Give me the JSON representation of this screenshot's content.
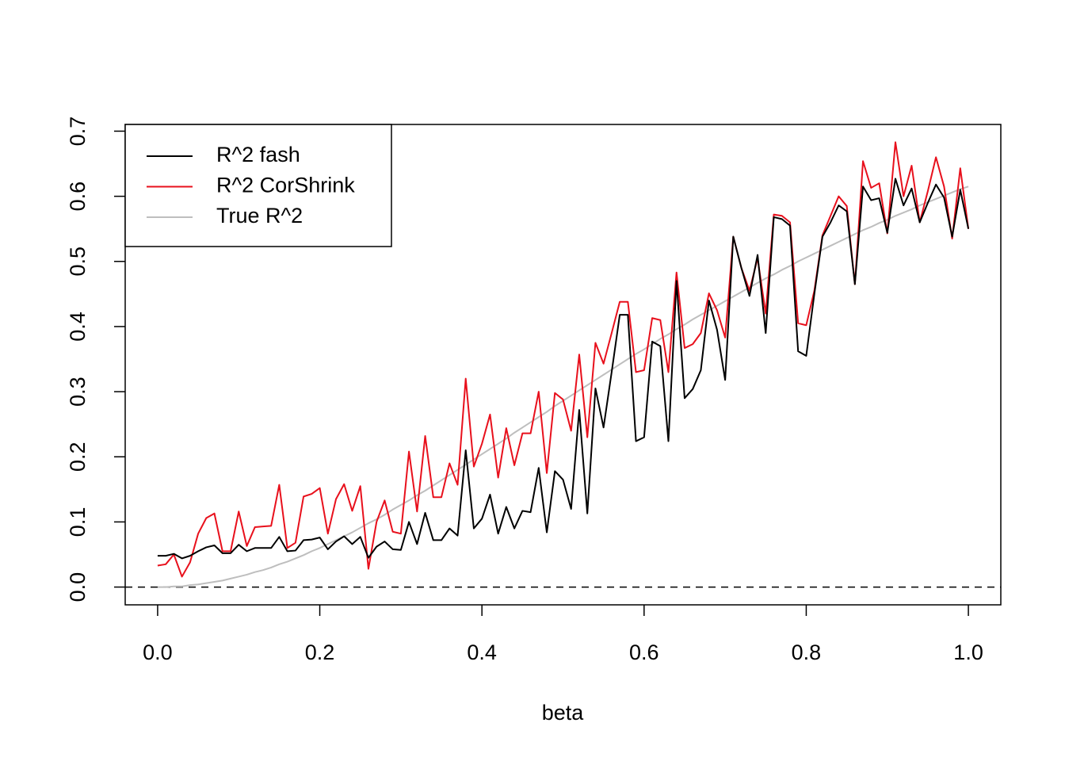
{
  "chart_data": {
    "type": "line",
    "xlabel": "beta",
    "x": [
      0,
      0.01,
      0.02,
      0.03,
      0.04,
      0.05,
      0.06,
      0.07,
      0.08,
      0.09,
      0.1,
      0.11,
      0.12,
      0.13,
      0.14,
      0.15,
      0.16,
      0.17,
      0.18,
      0.19,
      0.2,
      0.21,
      0.22,
      0.23,
      0.24,
      0.25,
      0.26,
      0.27,
      0.28,
      0.29,
      0.3,
      0.31,
      0.32,
      0.33,
      0.34,
      0.35,
      0.36,
      0.37,
      0.38,
      0.39,
      0.4,
      0.41,
      0.42,
      0.43,
      0.44,
      0.45,
      0.46,
      0.47,
      0.48,
      0.49,
      0.5,
      0.51,
      0.52,
      0.53,
      0.54,
      0.55,
      0.56,
      0.57,
      0.58,
      0.59,
      0.6,
      0.61,
      0.62,
      0.63,
      0.64,
      0.65,
      0.66,
      0.67,
      0.68,
      0.69,
      0.7,
      0.71,
      0.72,
      0.73,
      0.74,
      0.75,
      0.76,
      0.77,
      0.78,
      0.79,
      0.8,
      0.81,
      0.82,
      0.83,
      0.84,
      0.85,
      0.86,
      0.87,
      0.88,
      0.89,
      0.9,
      0.91,
      0.92,
      0.93,
      0.94,
      0.95,
      0.96,
      0.97,
      0.98,
      0.99,
      1
    ],
    "series": [
      {
        "name": "R^2 fash",
        "color": "#000000",
        "values": [
          0.048,
          0.048,
          0.051,
          0.044,
          0.048,
          0.055,
          0.061,
          0.064,
          0.052,
          0.052,
          0.065,
          0.055,
          0.06,
          0.06,
          0.06,
          0.077,
          0.055,
          0.056,
          0.072,
          0.073,
          0.076,
          0.058,
          0.07,
          0.078,
          0.066,
          0.077,
          0.045,
          0.062,
          0.07,
          0.058,
          0.057,
          0.1,
          0.066,
          0.114,
          0.072,
          0.072,
          0.09,
          0.079,
          0.21,
          0.09,
          0.105,
          0.142,
          0.082,
          0.123,
          0.09,
          0.117,
          0.115,
          0.183,
          0.084,
          0.178,
          0.165,
          0.12,
          0.272,
          0.113,
          0.305,
          0.245,
          0.33,
          0.418,
          0.418,
          0.224,
          0.23,
          0.377,
          0.37,
          0.224,
          0.47,
          0.29,
          0.304,
          0.333,
          0.44,
          0.395,
          0.318,
          0.538,
          0.49,
          0.447,
          0.51,
          0.39,
          0.568,
          0.565,
          0.555,
          0.362,
          0.355,
          0.45,
          0.538,
          0.56,
          0.586,
          0.577,
          0.465,
          0.615,
          0.594,
          0.597,
          0.544,
          0.627,
          0.586,
          0.612,
          0.56,
          0.59,
          0.618,
          0.598,
          0.538,
          0.61,
          0.55
        ]
      },
      {
        "name": "R^2 CorShrink",
        "color": "#e8101c",
        "values": [
          0.033,
          0.035,
          0.05,
          0.016,
          0.038,
          0.082,
          0.106,
          0.113,
          0.055,
          0.055,
          0.116,
          0.063,
          0.092,
          0.093,
          0.094,
          0.157,
          0.06,
          0.068,
          0.139,
          0.143,
          0.152,
          0.082,
          0.135,
          0.158,
          0.117,
          0.155,
          0.028,
          0.1,
          0.133,
          0.085,
          0.082,
          0.208,
          0.116,
          0.232,
          0.138,
          0.138,
          0.19,
          0.157,
          0.32,
          0.185,
          0.22,
          0.265,
          0.168,
          0.244,
          0.187,
          0.236,
          0.236,
          0.3,
          0.175,
          0.298,
          0.288,
          0.24,
          0.357,
          0.23,
          0.375,
          0.343,
          0.39,
          0.438,
          0.438,
          0.33,
          0.333,
          0.413,
          0.41,
          0.33,
          0.483,
          0.367,
          0.373,
          0.39,
          0.451,
          0.425,
          0.383,
          0.538,
          0.49,
          0.455,
          0.505,
          0.42,
          0.572,
          0.57,
          0.56,
          0.405,
          0.402,
          0.455,
          0.54,
          0.57,
          0.6,
          0.585,
          0.465,
          0.654,
          0.613,
          0.62,
          0.543,
          0.683,
          0.6,
          0.647,
          0.56,
          0.608,
          0.66,
          0.615,
          0.535,
          0.643,
          0.55
        ]
      },
      {
        "name": "True R^2",
        "color": "#bebebe",
        "values": [
          0,
          0,
          0.001,
          0.001,
          0.003,
          0.004,
          0.006,
          0.008,
          0.01,
          0.013,
          0.016,
          0.019,
          0.023,
          0.026,
          0.03,
          0.035,
          0.039,
          0.044,
          0.049,
          0.055,
          0.06,
          0.066,
          0.072,
          0.078,
          0.084,
          0.091,
          0.098,
          0.104,
          0.111,
          0.119,
          0.126,
          0.133,
          0.141,
          0.148,
          0.156,
          0.164,
          0.172,
          0.18,
          0.188,
          0.196,
          0.204,
          0.212,
          0.22,
          0.228,
          0.237,
          0.245,
          0.253,
          0.261,
          0.269,
          0.278,
          0.286,
          0.294,
          0.302,
          0.31,
          0.318,
          0.326,
          0.334,
          0.342,
          0.35,
          0.358,
          0.365,
          0.373,
          0.381,
          0.388,
          0.396,
          0.403,
          0.411,
          0.418,
          0.425,
          0.432,
          0.439,
          0.446,
          0.453,
          0.46,
          0.467,
          0.474,
          0.48,
          0.487,
          0.493,
          0.5,
          0.506,
          0.512,
          0.518,
          0.524,
          0.53,
          0.536,
          0.542,
          0.548,
          0.553,
          0.559,
          0.564,
          0.57,
          0.575,
          0.58,
          0.586,
          0.591,
          0.596,
          0.601,
          0.606,
          0.611,
          0.615
        ]
      }
    ],
    "xlim": [
      -0.04,
      1.04
    ],
    "ylim": [
      -0.0273,
      0.7103
    ],
    "xticks": [
      {
        "value": 0,
        "label": "0.0"
      },
      0.2,
      0.4,
      0.6,
      0.8,
      {
        "value": 1,
        "label": "1.0"
      }
    ],
    "yticks": [
      {
        "value": 0,
        "label": "0.0"
      },
      0.1,
      0.2,
      0.3,
      0.4,
      0.5,
      0.6,
      0.7
    ],
    "hline": 0,
    "legend": "topleft",
    "grid": false
  }
}
